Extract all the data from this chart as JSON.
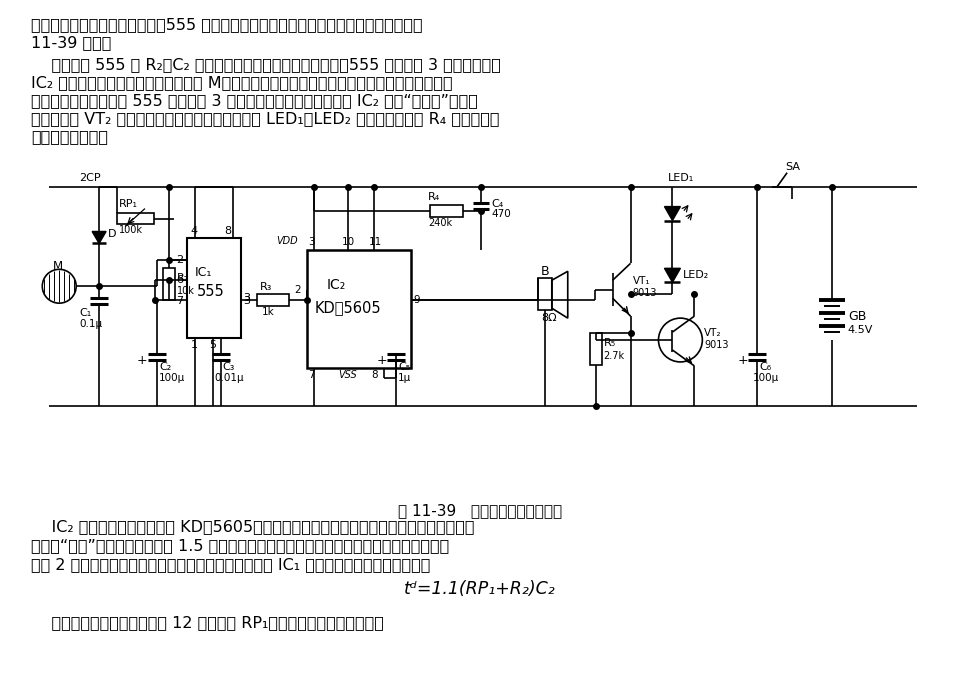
{
  "bg_color": "#ffffff",
  "fig_width": 9.6,
  "fig_height": 6.94,
  "p1_line1": "电子猫电路由场效应管放大器、555 单稳态延时电路和猫叫电路、声光电路等组成，如图",
  "p1_line2": "11-39 所示。",
  "p2_lines": [
    "    时基电路 555 和 R₂、C₂ 等组成一个单稳态延时电路，平时，555 的输出端 3 脚呈低电平，",
    "IC₂ 处于静止状态。当有人触摸金属片 M（置于玩具猫的鼻子或耳朵内）时，人体感应的电场信",
    "号经场效应管放大而使 555 触发，其 3 脚转呈高电平，触发猫叫电路 IC₂ 发出“咪、咪”的猫叫",
    "声，同时经 VT₂ 驱动装在玩具猫眼内的发光二极管 LED₁、LED₂ 闪烁发亮。调节 R₄ 的大小，可",
    "改变猫叫的音调。"
  ],
  "caption": "图 11-39   触摸即叫的电子玩具猫",
  "p3_lines": [
    "    IC₂ 采用模拟猫叫集成电路 KD＇5605，它是一种正电平触发即叫电路，每触发一次，可发",
    "出三声“喵一”叫，内储容量约为 1.5 秒。为使小猫有较长的持续声光报叫时间，需要在它的触",
    "发端 2 脚维持相应的高电平脉冲信号。该高电平脉冲由 IC₁ 单稳态的暂稳时间来保证，即"
  ],
  "formula": "tᵈ=1.1(RP₁+R₂)C₂",
  "p4": "    图示参数的最大暂稳时间为 12 秒。调节 RP₁，可改变其暂稳时间大小。"
}
